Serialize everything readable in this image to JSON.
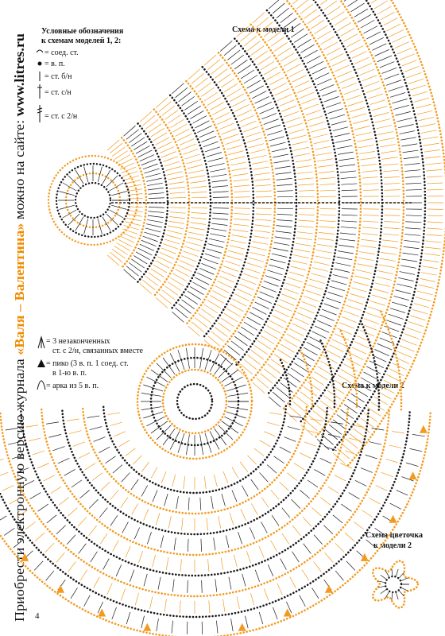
{
  "side_text": {
    "prefix": "Приобрести электронную версию журнала ",
    "magazine": "«Валя – Валентина»",
    "middle": " можно на сайте: ",
    "url": "www.litres.ru"
  },
  "legend": {
    "title": [
      "Условные обозначения",
      "к схемам моделей 1, 2:"
    ],
    "items": [
      "= соед. ст.",
      "= в. п.",
      "= ст. б/н",
      "= ст. с/н",
      "= ст. с 2/н"
    ]
  },
  "legend2": {
    "items": [
      [
        "= 3 незаконченных",
        "ст. с 2/н, связанных вместе"
      ],
      [
        "= пико (3 в. п. 1 соед. ст.",
        "в 1-ю в. п."
      ],
      [
        "= арка из 5 в. п."
      ]
    ]
  },
  "diagrams": {
    "model1": "Схема к модели 1",
    "model2": "Схема к модели 2",
    "flower": [
      "Схема цветочка",
      "к модели 2"
    ]
  },
  "page_number": "4"
}
